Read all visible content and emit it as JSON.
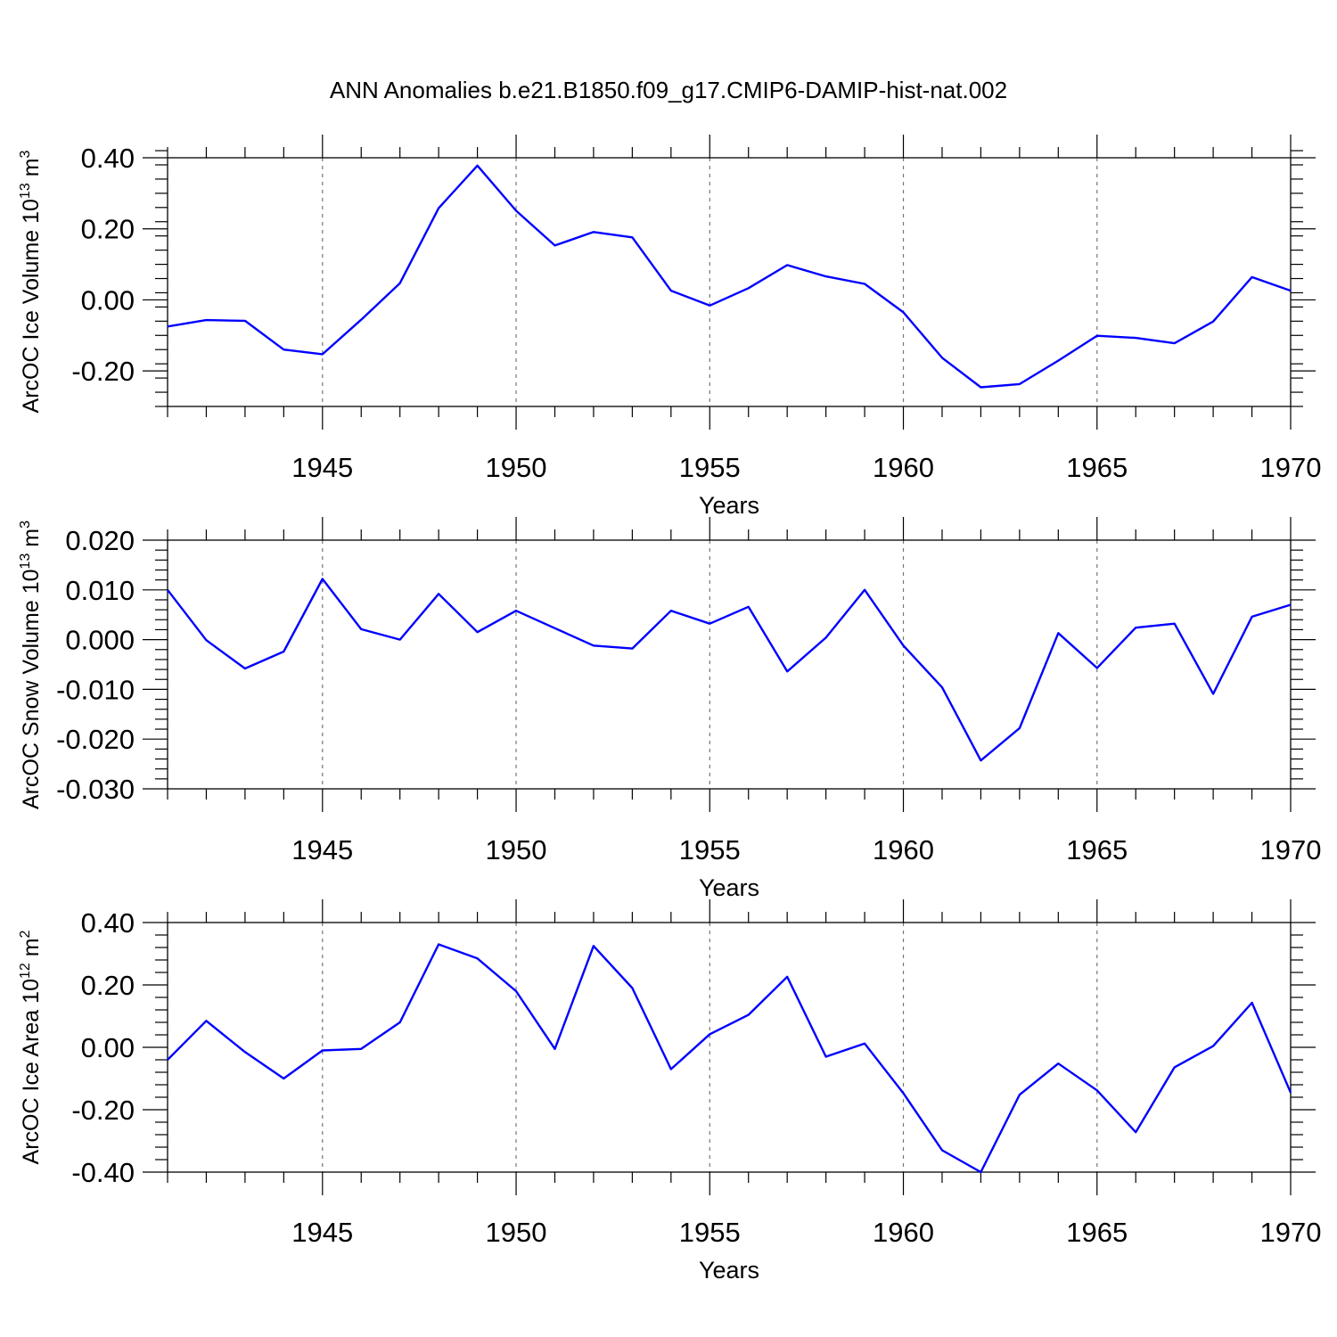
{
  "title": "ANN Anomalies b.e21.B1850.f09_g17.CMIP6-DAMIP-hist-nat.002",
  "colors": {
    "series": "#0000ff",
    "axis": "#000000",
    "grid": "#777777"
  },
  "chart_data": [
    {
      "type": "line",
      "ylabel_prefix": "ArcOC Ice Volume 10",
      "ylabel_exp": "13",
      "ylabel_unit": " m",
      "ylabel_unit_exp": "3",
      "xlabel": "Years",
      "xlim": [
        1941,
        1970
      ],
      "ylim": [
        -0.3,
        0.4
      ],
      "x_ticks": [
        1945,
        1950,
        1955,
        1960,
        1965,
        1970
      ],
      "x_tick_labels": [
        "1945",
        "1950",
        "1955",
        "1960",
        "1965",
        "1970"
      ],
      "y_ticks": [
        0.4,
        0.2,
        0.0,
        -0.2
      ],
      "y_tick_labels": [
        "0.40",
        "0.20",
        "0.00",
        "-0.20"
      ],
      "y_minor_step": 0.04,
      "x": [
        1941,
        1942,
        1943,
        1944,
        1945,
        1946,
        1947,
        1948,
        1949,
        1950,
        1951,
        1952,
        1953,
        1954,
        1955,
        1956,
        1957,
        1958,
        1959,
        1960,
        1961,
        1962,
        1963,
        1964,
        1965,
        1966,
        1967,
        1968,
        1969,
        1970
      ],
      "values": [
        -0.075,
        -0.057,
        -0.059,
        -0.14,
        -0.153,
        -0.056,
        0.047,
        0.258,
        0.378,
        0.251,
        0.153,
        0.191,
        0.176,
        0.026,
        -0.016,
        0.033,
        0.098,
        0.066,
        0.045,
        -0.035,
        -0.163,
        -0.246,
        -0.237,
        -0.171,
        -0.101,
        -0.107,
        -0.122,
        -0.061,
        0.064,
        0.026
      ]
    },
    {
      "type": "line",
      "ylabel_prefix": "ArcOC Snow Volume 10",
      "ylabel_exp": "13",
      "ylabel_unit": " m",
      "ylabel_unit_exp": "3",
      "xlabel": "Years",
      "xlim": [
        1941,
        1970
      ],
      "ylim": [
        -0.03,
        0.02
      ],
      "x_ticks": [
        1945,
        1950,
        1955,
        1960,
        1965,
        1970
      ],
      "x_tick_labels": [
        "1945",
        "1950",
        "1955",
        "1960",
        "1965",
        "1970"
      ],
      "y_ticks": [
        0.02,
        0.01,
        0.0,
        -0.01,
        -0.02,
        -0.03
      ],
      "y_tick_labels": [
        "0.020",
        "0.010",
        "0.000",
        "-0.010",
        "-0.020",
        "-0.030"
      ],
      "y_minor_step": 0.002,
      "x": [
        1941,
        1942,
        1943,
        1944,
        1945,
        1946,
        1947,
        1948,
        1949,
        1950,
        1951,
        1952,
        1953,
        1954,
        1955,
        1956,
        1957,
        1958,
        1959,
        1960,
        1961,
        1962,
        1963,
        1964,
        1965,
        1966,
        1967,
        1968,
        1969,
        1970
      ],
      "values": [
        0.01,
        -0.0001,
        -0.0058,
        -0.0024,
        0.0122,
        0.0021,
        0.0,
        0.0092,
        0.0015,
        0.0058,
        0.0023,
        -0.0012,
        -0.0018,
        0.0058,
        0.0032,
        0.0066,
        -0.0064,
        0.0004,
        0.01,
        -0.0012,
        -0.0096,
        -0.0243,
        -0.0178,
        0.0013,
        -0.0057,
        0.0024,
        0.0032,
        -0.0109,
        0.0046,
        0.007
      ]
    },
    {
      "type": "line",
      "ylabel_prefix": "ArcOC Ice Area 10",
      "ylabel_exp": "12",
      "ylabel_unit": " m",
      "ylabel_unit_exp": "2",
      "xlabel": "Years",
      "xlim": [
        1941,
        1970
      ],
      "ylim": [
        -0.4,
        0.4
      ],
      "x_ticks": [
        1945,
        1950,
        1955,
        1960,
        1965,
        1970
      ],
      "x_tick_labels": [
        "1945",
        "1950",
        "1955",
        "1960",
        "1965",
        "1970"
      ],
      "y_ticks": [
        0.4,
        0.2,
        0.0,
        -0.2,
        -0.4
      ],
      "y_tick_labels": [
        "0.40",
        "0.20",
        "0.00",
        "-0.20",
        "-0.40"
      ],
      "y_minor_step": 0.04,
      "x": [
        1941,
        1942,
        1943,
        1944,
        1945,
        1946,
        1947,
        1948,
        1949,
        1950,
        1951,
        1952,
        1953,
        1954,
        1955,
        1956,
        1957,
        1958,
        1959,
        1960,
        1961,
        1962,
        1963,
        1964,
        1965,
        1966,
        1967,
        1968,
        1969,
        1970
      ],
      "values": [
        -0.04,
        0.085,
        -0.015,
        -0.1,
        -0.01,
        -0.005,
        0.08,
        0.33,
        0.285,
        0.18,
        -0.005,
        0.325,
        0.19,
        -0.07,
        0.042,
        0.104,
        0.226,
        -0.03,
        0.012,
        -0.147,
        -0.33,
        -0.4,
        -0.152,
        -0.052,
        -0.138,
        -0.272,
        -0.064,
        0.004,
        0.143,
        -0.145
      ]
    }
  ]
}
